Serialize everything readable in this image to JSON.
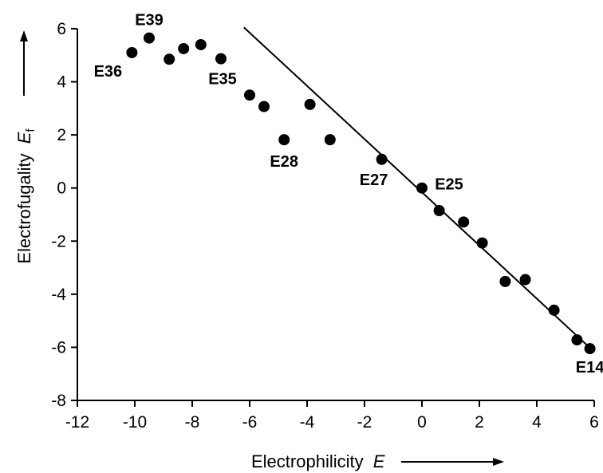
{
  "chart_data": {
    "type": "scatter",
    "xlabel": {
      "text": "Electrophilicity",
      "var": "E"
    },
    "ylabel": {
      "text": "Electrofugality",
      "var": "E",
      "sub": "f"
    },
    "xlim": [
      -12,
      6
    ],
    "ylim": [
      -8,
      6
    ],
    "x_ticks": [
      -12,
      -10,
      -8,
      -6,
      -4,
      -2,
      0,
      2,
      4,
      6
    ],
    "y_ticks": [
      -8,
      -6,
      -4,
      -2,
      0,
      2,
      4,
      6
    ],
    "grid": false,
    "points": [
      {
        "x": -10.1,
        "y": 5.1,
        "label": "E36"
      },
      {
        "x": -9.5,
        "y": 5.65,
        "label": "E39"
      },
      {
        "x": -8.8,
        "y": 4.85,
        "label": ""
      },
      {
        "x": -8.3,
        "y": 5.25,
        "label": ""
      },
      {
        "x": -7.7,
        "y": 5.4,
        "label": ""
      },
      {
        "x": -7.0,
        "y": 4.87,
        "label": "E35"
      },
      {
        "x": -6.0,
        "y": 3.5,
        "label": ""
      },
      {
        "x": -5.5,
        "y": 3.07,
        "label": ""
      },
      {
        "x": -4.8,
        "y": 1.82,
        "label": "E28"
      },
      {
        "x": -3.9,
        "y": 3.15,
        "label": ""
      },
      {
        "x": -3.2,
        "y": 1.82,
        "label": ""
      },
      {
        "x": -1.4,
        "y": 1.08,
        "label": "E27"
      },
      {
        "x": 0.0,
        "y": 0.0,
        "label": "E25"
      },
      {
        "x": 0.6,
        "y": -0.85,
        "label": ""
      },
      {
        "x": 1.45,
        "y": -1.28,
        "label": ""
      },
      {
        "x": 2.1,
        "y": -2.07,
        "label": ""
      },
      {
        "x": 2.9,
        "y": -3.52,
        "label": ""
      },
      {
        "x": 3.6,
        "y": -3.45,
        "label": ""
      },
      {
        "x": 4.6,
        "y": -4.6,
        "label": ""
      },
      {
        "x": 5.4,
        "y": -5.72,
        "label": ""
      },
      {
        "x": 5.85,
        "y": -6.05,
        "label": "E14"
      }
    ],
    "fit_line": {
      "x": [
        -6.2,
        5.95
      ],
      "y": [
        6.05,
        -6.12
      ]
    }
  }
}
